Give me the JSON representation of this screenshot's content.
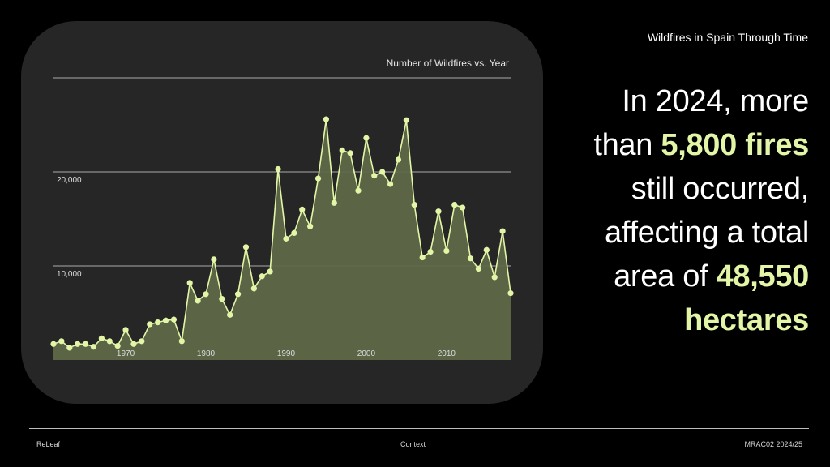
{
  "slide": {
    "title": "Wildfires in Spain Through Time",
    "headline": {
      "line1": "In 2024, more",
      "line2_prefix": "than ",
      "line2_highlight": "5,800 fires",
      "line3": "still occurred,",
      "line4": "affecting a total",
      "line5_prefix": "area of ",
      "line5_highlight": "48,550",
      "line6_highlight": "hectares"
    },
    "footer": {
      "left": "ReLeaf",
      "center": "Context",
      "right": "MRAC02 2024/25"
    }
  },
  "colors": {
    "background": "#000000",
    "card": "#262626",
    "accent": "#e3f6a7",
    "area_fill": "#5e6848"
  },
  "chart_data": {
    "type": "area",
    "title": "Number of Wildfires vs. Year",
    "xlabel": "",
    "ylabel": "",
    "x": [
      1961,
      1962,
      1963,
      1964,
      1965,
      1966,
      1967,
      1968,
      1969,
      1970,
      1971,
      1972,
      1973,
      1974,
      1975,
      1976,
      1977,
      1978,
      1979,
      1980,
      1981,
      1982,
      1983,
      1984,
      1985,
      1986,
      1987,
      1988,
      1989,
      1990,
      1991,
      1992,
      1993,
      1994,
      1995,
      1996,
      1997,
      1998,
      1999,
      2000,
      2001,
      2002,
      2003,
      2004,
      2005,
      2006,
      2007,
      2008,
      2009,
      2010,
      2011,
      2012,
      2013,
      2014,
      2015,
      2016,
      2017,
      2018
    ],
    "values": [
      1700,
      2000,
      1300,
      1700,
      1700,
      1400,
      2300,
      2000,
      1500,
      3200,
      1700,
      2000,
      3800,
      4000,
      4200,
      4300,
      2000,
      8200,
      6300,
      7000,
      10700,
      6500,
      4800,
      7000,
      12000,
      7600,
      8900,
      9400,
      20300,
      12900,
      13500,
      16000,
      14200,
      19300,
      25600,
      16700,
      22300,
      22000,
      18000,
      23600,
      19600,
      20000,
      18700,
      21300,
      25500,
      16500,
      10900,
      11500,
      15800,
      11600,
      16500,
      16200,
      10800,
      9700,
      11700,
      8800,
      13700,
      7100
    ],
    "xticks": [
      "1970",
      "1980",
      "1990",
      "2000",
      "2010"
    ],
    "xtick_values": [
      1970,
      1980,
      1990,
      2000,
      2010
    ],
    "yticks": [
      "10,000",
      "20,000"
    ],
    "ytick_values": [
      10000,
      20000
    ],
    "xlim": [
      1961,
      2018
    ],
    "ylim": [
      0,
      30000
    ],
    "grid": true
  }
}
